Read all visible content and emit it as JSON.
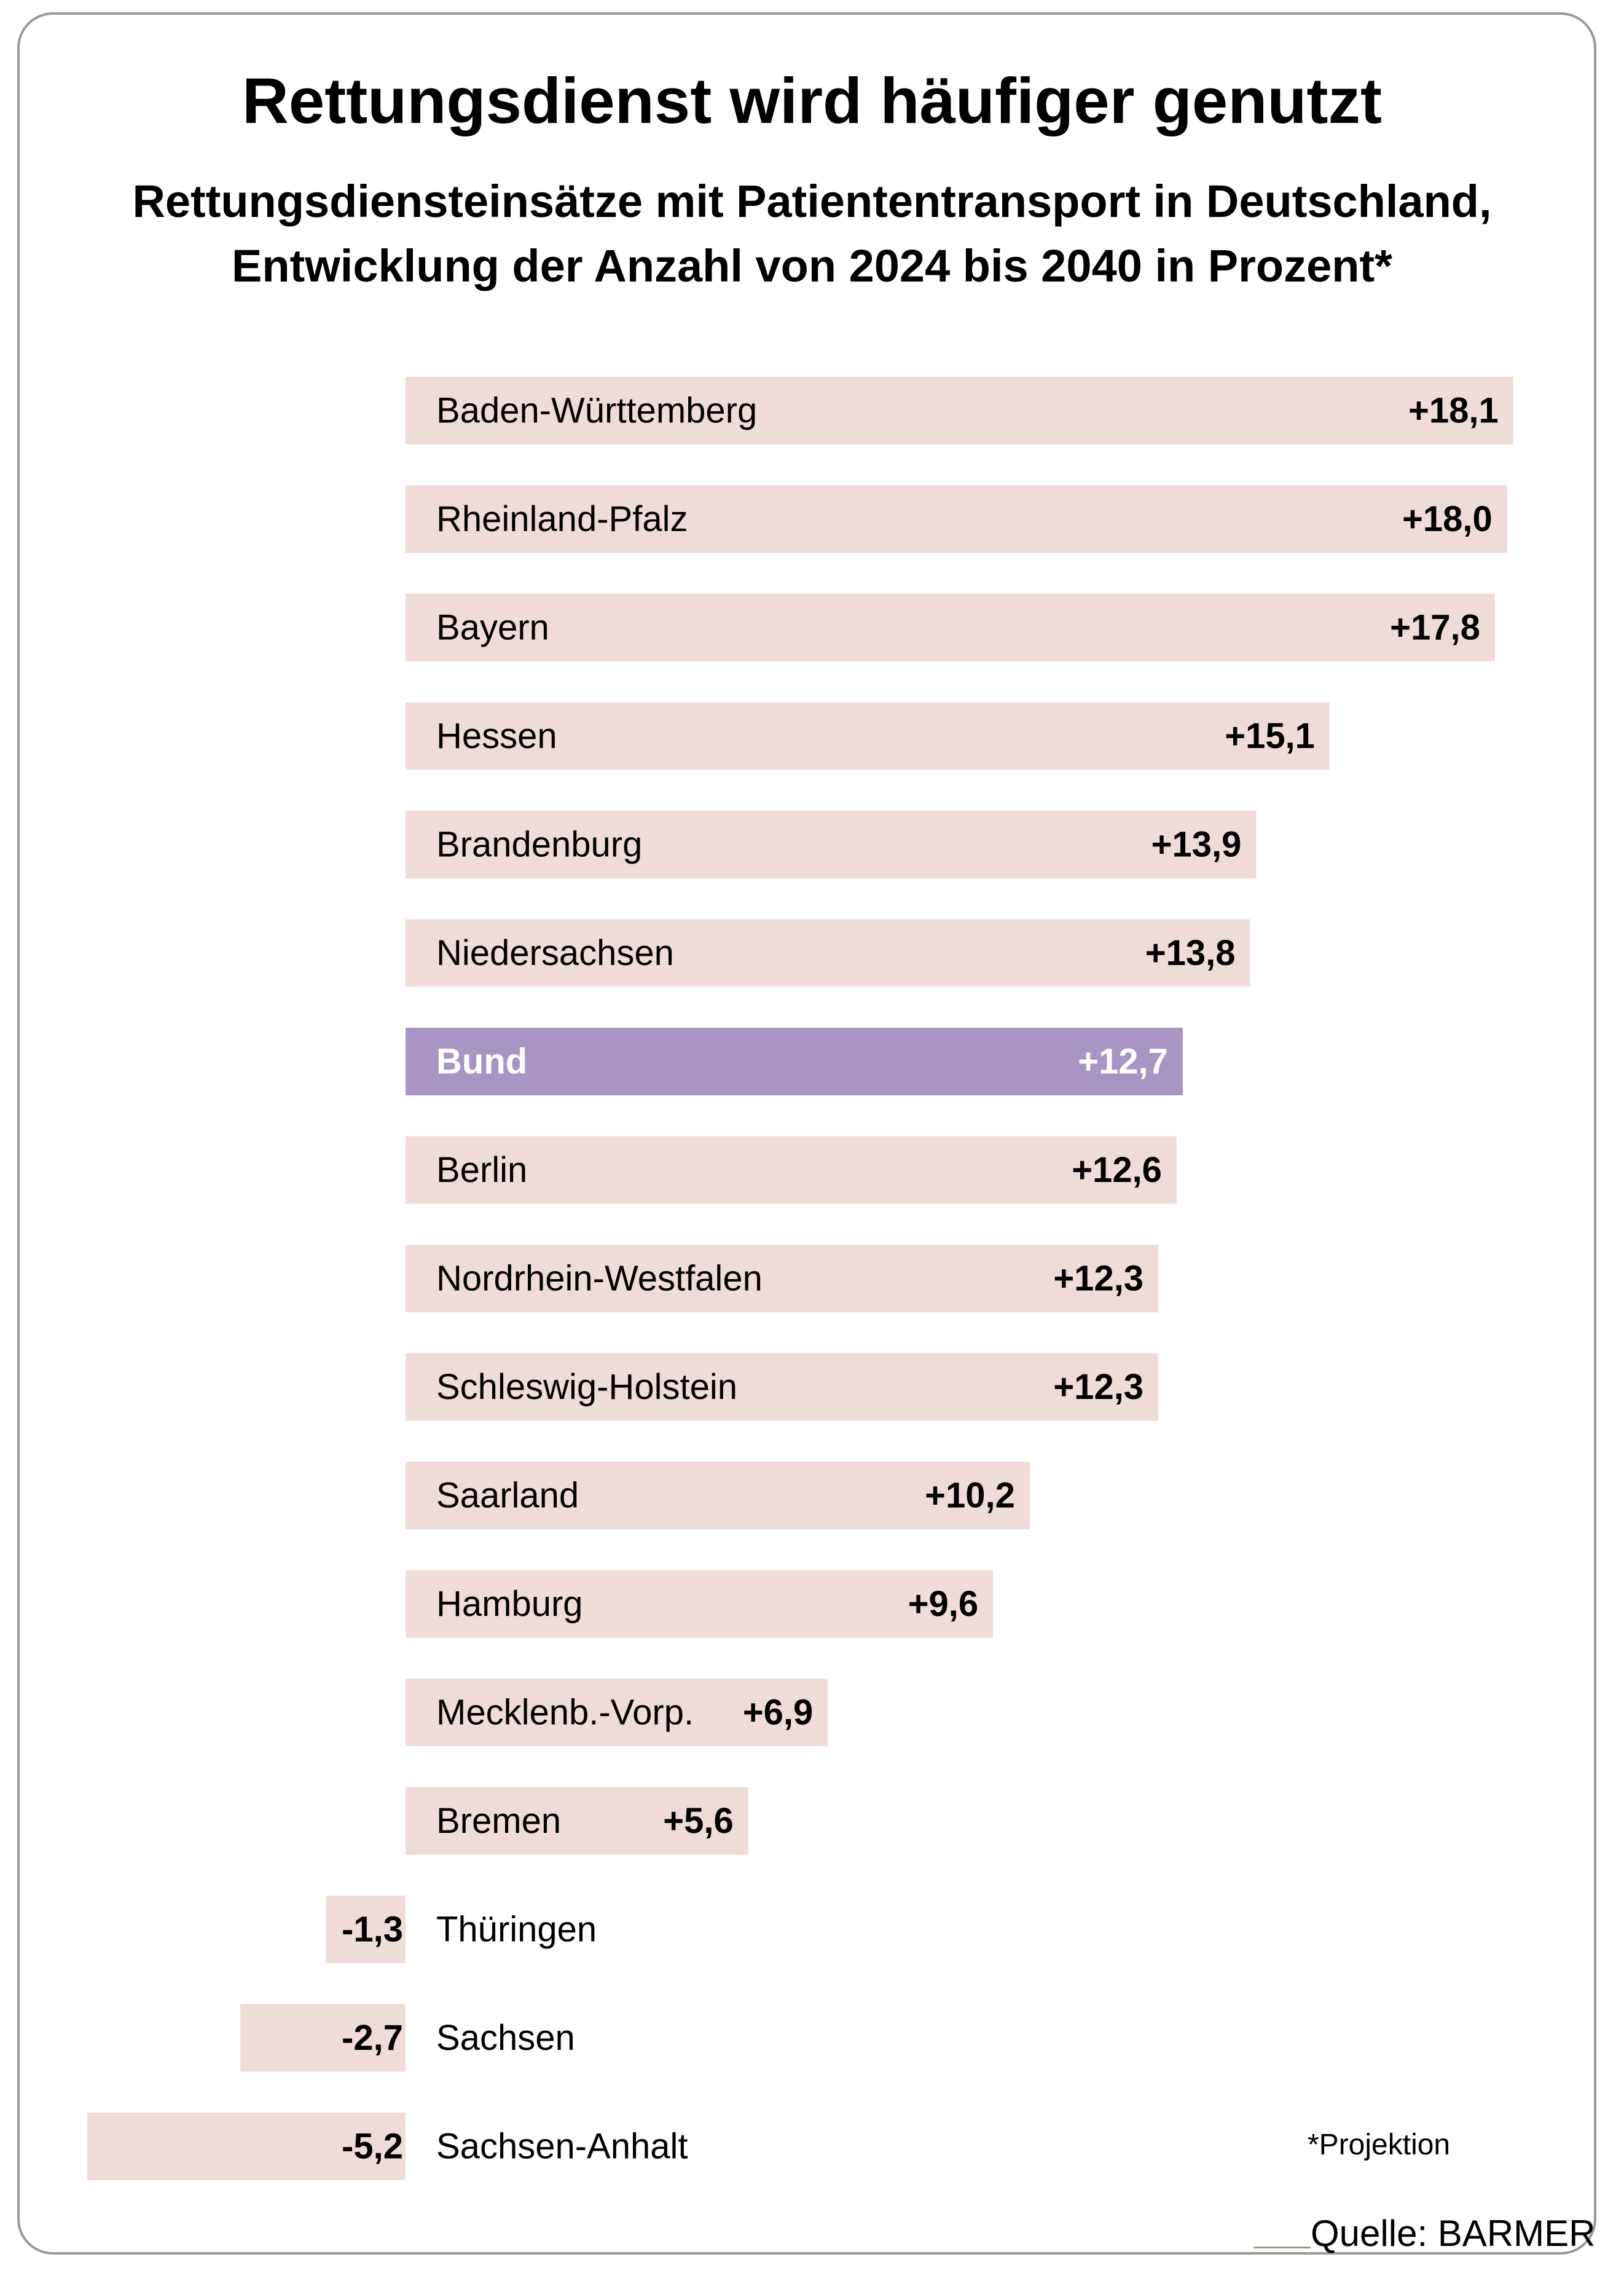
{
  "chart_data": {
    "type": "bar",
    "orientation": "horizontal",
    "title": "Rettungsdienst wird häufiger genutzt",
    "subtitle": [
      "Rettungsdiensteinsätze mit Patiententransport in Deutschland,",
      "Entwicklung der Anzahl von 2024 bis 2040 in Prozent*"
    ],
    "categories": [
      "Baden-Württemberg",
      "Rheinland-Pfalz",
      "Bayern",
      "Hessen",
      "Brandenburg",
      "Niedersachsen",
      "Bund",
      "Berlin",
      "Nordrhein-Westfalen",
      "Schleswig-Holstein",
      "Saarland",
      "Hamburg",
      "Mecklenb.-Vorp.",
      "Bremen",
      "Thüringen",
      "Sachsen",
      "Sachsen-Anhalt"
    ],
    "values": [
      18.1,
      18.0,
      17.8,
      15.1,
      13.9,
      13.8,
      12.7,
      12.6,
      12.3,
      12.3,
      10.2,
      9.6,
      6.9,
      5.6,
      -1.3,
      -2.7,
      -5.2
    ],
    "value_labels": [
      "+18,1",
      "+18,0",
      "+17,8",
      "+15,1",
      "+13,9",
      "+13,8",
      "+12,7",
      "+12,6",
      "+12,3",
      "+12,3",
      "+10,2",
      "+9,6",
      "+6,9",
      "+5,6",
      "-1,3",
      "-2,7",
      "-5,2"
    ],
    "highlight": "Bund",
    "colors": {
      "bar": "#efdcd8",
      "highlight": "#a995c5",
      "highlight_text": "#ffffff",
      "text": "#000000"
    },
    "grid": false,
    "legend": "none"
  },
  "footnote": "*Projektion",
  "source": "Quelle: BARMER"
}
